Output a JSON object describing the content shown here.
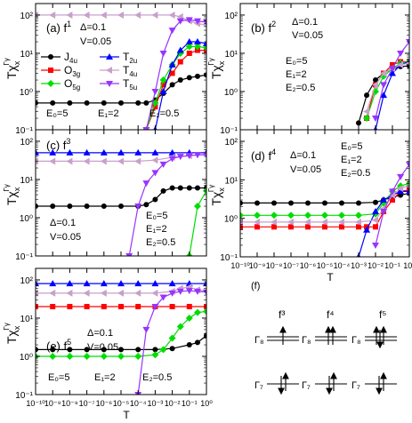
{
  "chart_data": [
    {
      "type": "line",
      "panel": "(a)",
      "label_text": "(a)  f",
      "sup": "1",
      "params": [
        "Δ=0.1",
        "V=0.05"
      ],
      "energies": [
        "E₀=5",
        "E₁=2",
        "E₂=0.5"
      ],
      "legend": [
        {
          "name": "J",
          "sub": "4u"
        },
        {
          "name": "T",
          "sub": "2u"
        },
        {
          "name": "O",
          "sub": "3g"
        },
        {
          "name": "T",
          "sub": "4u"
        },
        {
          "name": "O",
          "sub": "5g"
        },
        {
          "name": "T",
          "sub": "5u"
        }
      ],
      "ylabel": "Tχ",
      "ylabel_sub": "x",
      "ylabel_sup": "Γγ",
      "yscale": "log",
      "xscale": "log",
      "ylim": [
        0.1,
        200
      ],
      "xlim": [
        1e-10,
        1
      ],
      "yticks": [
        "10⁻¹",
        "10⁰",
        "10¹",
        "10²"
      ],
      "series": [
        {
          "name": "J4u",
          "x": [
            1e-10,
            1e-09,
            1e-08,
            1e-07,
            1e-06,
            1e-05,
            0.0001,
            0.0003,
            0.001,
            0.003,
            0.01,
            0.03,
            0.1,
            0.3,
            1
          ],
          "y": [
            0.5,
            0.5,
            0.5,
            0.5,
            0.5,
            0.5,
            0.5,
            0.5,
            0.6,
            0.9,
            1.5,
            2,
            2.3,
            2.5,
            2.7
          ]
        },
        {
          "name": "O3g",
          "x": [
            0.0003,
            0.001,
            0.003,
            0.01,
            0.03,
            0.1,
            0.3,
            1
          ],
          "y": [
            0.1,
            0.4,
            1.5,
            3,
            6,
            10,
            12,
            12
          ]
        },
        {
          "name": "O5g",
          "x": [
            0.0003,
            0.001,
            0.003,
            0.01,
            0.03,
            0.1,
            0.3,
            1
          ],
          "y": [
            0.1,
            0.5,
            2,
            5,
            10,
            15,
            15,
            14
          ]
        },
        {
          "name": "T2u",
          "x": [
            0.001,
            0.003,
            0.01,
            0.03,
            0.1,
            0.3,
            1
          ],
          "y": [
            0.1,
            1,
            5,
            12,
            20,
            20,
            18
          ]
        },
        {
          "name": "T4u",
          "x": [
            1e-10,
            1e-09,
            1e-08,
            1e-07,
            1e-06,
            1e-05,
            0.0001,
            0.001,
            0.01,
            0.03,
            0.1,
            0.3,
            1
          ],
          "y": [
            100,
            100,
            100,
            100,
            100,
            100,
            100,
            100,
            100,
            90,
            70,
            60,
            55
          ]
        },
        {
          "name": "T5u",
          "x": [
            0.0003,
            0.001,
            0.003,
            0.01,
            0.03,
            0.1,
            0.3,
            1
          ],
          "y": [
            0.1,
            1,
            10,
            40,
            70,
            75,
            70,
            65
          ]
        }
      ]
    },
    {
      "type": "line",
      "panel": "(b)",
      "label_text": "(b)  f",
      "sup": "2",
      "params": [
        "Δ=0.1",
        "V=0.05"
      ],
      "energies": [
        "E₀=5",
        "E₁=2",
        "E₂=0.5"
      ],
      "ylabel": "Tχ",
      "ylabel_sub": "x",
      "ylabel_sup": "Γγ",
      "yscale": "log",
      "xscale": "log",
      "ylim": [
        0.1,
        200
      ],
      "xlim": [
        1e-10,
        1
      ],
      "yticks": [
        "10⁻¹",
        "10⁰",
        "10¹",
        "10²"
      ],
      "series": [
        {
          "name": "J4u",
          "x": [
            0.001,
            0.003,
            0.01,
            0.03,
            0.1,
            0.3,
            1
          ],
          "y": [
            0.15,
            0.8,
            2,
            3,
            4,
            4.5,
            4.7
          ]
        },
        {
          "name": "O3g",
          "x": [
            0.003,
            0.01,
            0.03,
            0.1,
            0.3,
            1
          ],
          "y": [
            0.2,
            1.5,
            3,
            5,
            6,
            6
          ]
        },
        {
          "name": "O5g",
          "x": [
            0.003,
            0.01,
            0.03,
            0.1,
            0.3,
            1
          ],
          "y": [
            0.2,
            1,
            2.5,
            4,
            5.5,
            6
          ]
        },
        {
          "name": "T2u",
          "x": [
            0.01,
            0.03,
            0.1,
            0.3,
            1
          ],
          "y": [
            0.1,
            0.8,
            3,
            5,
            6
          ]
        },
        {
          "name": "T4u",
          "x": [
            0.003,
            0.01,
            0.03,
            0.1,
            0.3,
            1
          ],
          "y": [
            0.3,
            1.5,
            3,
            4,
            5,
            5.5
          ]
        },
        {
          "name": "T5u",
          "x": [
            0.01,
            0.03,
            0.1,
            0.3,
            1
          ],
          "y": [
            0.2,
            1.5,
            4,
            10,
            20
          ]
        }
      ]
    },
    {
      "type": "line",
      "panel": "(c)",
      "label_text": "(c)  f",
      "sup": "3",
      "params": [
        "Δ=0.1",
        "V=0.05"
      ],
      "energies": [
        "E₀=5",
        "E₁=2",
        "E₂=0.5"
      ],
      "ylabel": "Tχ",
      "ylabel_sub": "x",
      "ylabel_sup": "Γγ",
      "yscale": "log",
      "xscale": "log",
      "ylim": [
        0.1,
        200
      ],
      "xlim": [
        1e-10,
        1
      ],
      "yticks": [
        "10⁻¹",
        "10⁰",
        "10¹",
        "10²"
      ],
      "series": [
        {
          "name": "J4u",
          "x": [
            1e-10,
            1e-09,
            1e-08,
            1e-07,
            1e-06,
            1e-05,
            0.0001,
            0.0003,
            0.001,
            0.003,
            0.01,
            0.03,
            0.1,
            0.3,
            1
          ],
          "y": [
            2,
            2,
            2,
            2,
            2,
            2,
            2,
            2.2,
            3,
            5,
            6,
            6,
            6,
            6,
            6
          ]
        },
        {
          "name": "O5g",
          "x": [
            0.1,
            0.3,
            1
          ],
          "y": [
            0.1,
            2,
            5
          ]
        },
        {
          "name": "T2u",
          "x": [
            1e-10,
            1e-09,
            1e-08,
            1e-07,
            1e-06,
            1e-05,
            0.0001,
            0.001,
            0.01,
            0.1,
            1
          ],
          "y": [
            50,
            50,
            50,
            50,
            50,
            50,
            50,
            50,
            50,
            50,
            50
          ]
        },
        {
          "name": "T4u",
          "x": [
            1e-10,
            1e-09,
            1e-08,
            1e-07,
            1e-06,
            1e-05,
            0.0001,
            0.001,
            0.01,
            0.1,
            1
          ],
          "y": [
            30,
            30,
            30,
            30,
            30,
            30,
            30,
            32,
            38,
            42,
            45
          ]
        },
        {
          "name": "T5u",
          "x": [
            3e-05,
            0.0001,
            0.0003,
            0.001,
            0.003,
            0.01,
            0.03,
            0.1,
            0.3,
            1
          ],
          "y": [
            0.1,
            2,
            8,
            15,
            25,
            35,
            40,
            42,
            44,
            45
          ]
        }
      ]
    },
    {
      "type": "line",
      "panel": "(d)",
      "label_text": "(d)  f",
      "sup": "4",
      "params": [
        "Δ=0.1",
        "V=0.05"
      ],
      "energies": [
        "E₀=5",
        "E₁=2",
        "E₂=0.5"
      ],
      "ylabel": "Tχ",
      "ylabel_sub": "x",
      "ylabel_sup": "Γγ",
      "xlabel": "T",
      "yscale": "log",
      "xscale": "log",
      "ylim": [
        0.1,
        200
      ],
      "xlim": [
        1e-10,
        1
      ],
      "yticks": [
        "10⁻¹",
        "10⁰",
        "10¹",
        "10²"
      ],
      "xticks": [
        "10⁻¹⁰",
        "10⁻⁹",
        "10⁻⁸",
        "10⁻⁷",
        "10⁻⁶",
        "10⁻⁵",
        "10⁻⁴",
        "10⁻³",
        "10⁻²",
        "10⁻¹",
        "10⁰"
      ],
      "series": [
        {
          "name": "J4u",
          "x": [
            1e-10,
            1e-09,
            1e-08,
            1e-07,
            1e-06,
            1e-05,
            0.0001,
            0.001,
            0.01,
            0.03,
            0.1,
            0.3,
            1
          ],
          "y": [
            2.5,
            2.5,
            2.5,
            2.5,
            2.5,
            2.5,
            2.5,
            2.5,
            2.6,
            3,
            3.5,
            4,
            4.5
          ]
        },
        {
          "name": "O3g",
          "x": [
            1e-10,
            1e-09,
            1e-08,
            1e-07,
            1e-06,
            1e-05,
            0.0001,
            0.001,
            0.003,
            0.01,
            0.03,
            0.1,
            0.3,
            1
          ],
          "y": [
            0.6,
            0.6,
            0.6,
            0.6,
            0.6,
            0.6,
            0.6,
            0.6,
            0.6,
            0.6,
            1.5,
            3,
            5,
            5.5
          ]
        },
        {
          "name": "O5g",
          "x": [
            1e-10,
            1e-09,
            1e-08,
            1e-07,
            1e-06,
            1e-05,
            0.0001,
            0.001,
            0.01,
            0.03,
            0.1,
            0.3,
            1
          ],
          "y": [
            1.2,
            1.2,
            1.2,
            1.2,
            1.2,
            1.2,
            1.2,
            1.2,
            1.3,
            2.5,
            5,
            7,
            8
          ]
        },
        {
          "name": "T2u",
          "x": [
            0.001,
            0.003,
            0.01,
            0.03,
            0.1,
            0.3,
            1
          ],
          "y": [
            0.1,
            0.5,
            1.5,
            3,
            4,
            5,
            5
          ]
        },
        {
          "name": "T4u",
          "x": [
            1e-10,
            1e-09,
            1e-08,
            1e-07,
            1e-06,
            1e-05,
            0.0001,
            0.001,
            0.01,
            0.03,
            0.1,
            0.3,
            1
          ],
          "y": [
            0.8,
            0.8,
            0.8,
            0.8,
            0.8,
            0.8,
            0.8,
            0.8,
            0.9,
            1.8,
            4,
            6,
            7
          ]
        },
        {
          "name": "T5u",
          "x": [
            0.01,
            0.03,
            0.1,
            0.3,
            1
          ],
          "y": [
            0.2,
            1.5,
            5,
            12,
            25
          ]
        }
      ]
    },
    {
      "type": "line",
      "panel": "(e)",
      "label_text": "(e)  f",
      "sup": "5",
      "params": [
        "Δ=0.1",
        "V=0.05"
      ],
      "energies": [
        "E₀=5",
        "E₁=2",
        "E₂=0.5"
      ],
      "ylabel": "Tχ",
      "ylabel_sub": "x",
      "ylabel_sup": "Γγ",
      "xlabel": "T",
      "yscale": "log",
      "xscale": "log",
      "ylim": [
        0.1,
        200
      ],
      "xlim": [
        1e-10,
        1
      ],
      "yticks": [
        "10⁻¹",
        "10⁰",
        "10¹",
        "10²"
      ],
      "xticks": [
        "10⁻¹⁰",
        "10⁻⁹",
        "10⁻⁸",
        "10⁻⁷",
        "10⁻⁶",
        "10⁻⁵",
        "10⁻⁴",
        "10⁻³",
        "10⁻²",
        "10⁻¹",
        "10⁰"
      ],
      "series": [
        {
          "name": "J4u",
          "x": [
            1e-10,
            1e-09,
            1e-08,
            1e-07,
            1e-06,
            1e-05,
            0.0001,
            0.001,
            0.01,
            0.1,
            0.3,
            1
          ],
          "y": [
            1.5,
            1.5,
            1.5,
            1.5,
            1.5,
            1.5,
            1.5,
            1.5,
            1.6,
            2,
            2.3,
            3.5
          ]
        },
        {
          "name": "O3g",
          "x": [
            1e-10,
            1e-09,
            1e-08,
            1e-07,
            1e-06,
            1e-05,
            0.0001,
            0.001,
            0.01,
            0.1,
            1
          ],
          "y": [
            20,
            20,
            20,
            20,
            20,
            20,
            20,
            20,
            20,
            20,
            20
          ]
        },
        {
          "name": "O5g",
          "x": [
            1e-10,
            1e-09,
            1e-08,
            1e-07,
            1e-06,
            1e-05,
            0.0001,
            0.001,
            0.003,
            0.01,
            0.03,
            0.1,
            0.3,
            1
          ],
          "y": [
            1,
            1,
            1,
            1,
            1,
            1,
            1,
            1.1,
            1.5,
            3,
            6,
            10,
            14,
            15
          ]
        },
        {
          "name": "T2u",
          "x": [
            1e-10,
            1e-09,
            1e-08,
            1e-07,
            1e-06,
            1e-05,
            0.0001,
            0.001,
            0.01,
            0.1,
            1
          ],
          "y": [
            80,
            80,
            80,
            80,
            80,
            80,
            80,
            80,
            80,
            80,
            80
          ]
        },
        {
          "name": "T4u",
          "x": [
            1e-10,
            1e-09,
            1e-08,
            1e-07,
            1e-06,
            1e-05,
            0.0001,
            0.001,
            0.01,
            0.03,
            0.1,
            0.3,
            1
          ],
          "y": [
            45,
            45,
            45,
            45,
            45,
            45,
            45,
            45,
            50,
            60,
            65,
            55,
            50
          ]
        },
        {
          "name": "T5u",
          "x": [
            0.0001,
            0.0003,
            0.001,
            0.003,
            0.01,
            0.03,
            0.1,
            0.3,
            1
          ],
          "y": [
            0.1,
            5,
            20,
            35,
            45,
            50,
            52,
            50,
            48
          ]
        }
      ]
    }
  ],
  "panel_f": {
    "label": "(f)",
    "headings": [
      "f³",
      "f⁴",
      "f⁵"
    ],
    "levels": [
      "Γ₈",
      "Γ₇"
    ]
  }
}
